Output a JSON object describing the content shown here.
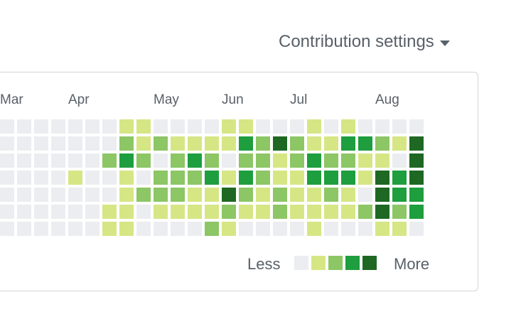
{
  "header": {
    "settings_label": "Contribution settings"
  },
  "calendar": {
    "months": [
      "Mar",
      "Apr",
      "May",
      "Jun",
      "Jul",
      "Aug"
    ],
    "weeks": [
      [
        0,
        0,
        0,
        0,
        0,
        0,
        0
      ],
      [
        0,
        0,
        0,
        0,
        0,
        0,
        0
      ],
      [
        0,
        0,
        0,
        0,
        0,
        0,
        0
      ],
      [
        0,
        0,
        0,
        0,
        0,
        0,
        0
      ],
      [
        0,
        0,
        0,
        1,
        0,
        0,
        0
      ],
      [
        0,
        0,
        0,
        0,
        0,
        0,
        0
      ],
      [
        0,
        0,
        2,
        0,
        0,
        1,
        1
      ],
      [
        1,
        2,
        3,
        1,
        1,
        1,
        1
      ],
      [
        1,
        1,
        2,
        0,
        2,
        0,
        0
      ],
      [
        0,
        2,
        0,
        2,
        2,
        1,
        0
      ],
      [
        0,
        1,
        2,
        2,
        2,
        1,
        0
      ],
      [
        0,
        1,
        3,
        2,
        1,
        1,
        0
      ],
      [
        0,
        1,
        2,
        3,
        1,
        1,
        2
      ],
      [
        1,
        1,
        0,
        1,
        4,
        2,
        1
      ],
      [
        1,
        3,
        2,
        3,
        2,
        1,
        0
      ],
      [
        0,
        2,
        2,
        2,
        1,
        1,
        0
      ],
      [
        0,
        4,
        1,
        1,
        2,
        2,
        0
      ],
      [
        0,
        2,
        2,
        1,
        1,
        1,
        0
      ],
      [
        1,
        1,
        3,
        3,
        1,
        1,
        1
      ],
      [
        0,
        1,
        2,
        3,
        2,
        1,
        0
      ],
      [
        1,
        3,
        2,
        3,
        1,
        1,
        0
      ],
      [
        0,
        3,
        1,
        1,
        0,
        2,
        0
      ],
      [
        0,
        2,
        1,
        4,
        4,
        4,
        1
      ],
      [
        0,
        1,
        0,
        3,
        3,
        2,
        1
      ],
      [
        0,
        4,
        4,
        4,
        3,
        3,
        0
      ]
    ],
    "colors": [
      "#ebedf0",
      "#d6e685",
      "#8cc665",
      "#1e9e3e",
      "#1e6823"
    ]
  },
  "legend": {
    "less_label": "Less",
    "more_label": "More"
  }
}
